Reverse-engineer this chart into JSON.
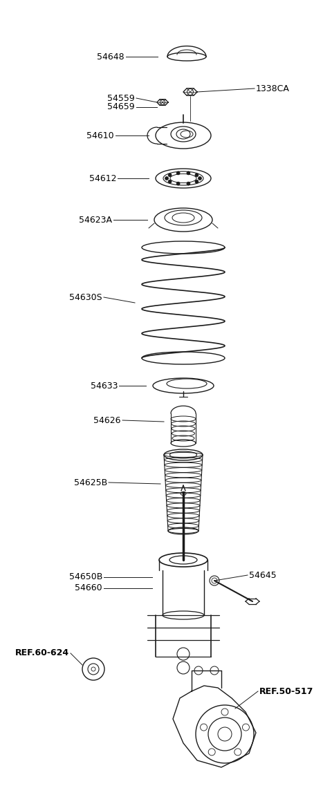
{
  "bg_color": "#ffffff",
  "line_color": "#1a1a1a",
  "text_color": "#000000",
  "figsize": [
    4.8,
    11.53
  ],
  "dpi": 100,
  "xlim": [
    0,
    480
  ],
  "ylim": [
    0,
    1153
  ]
}
